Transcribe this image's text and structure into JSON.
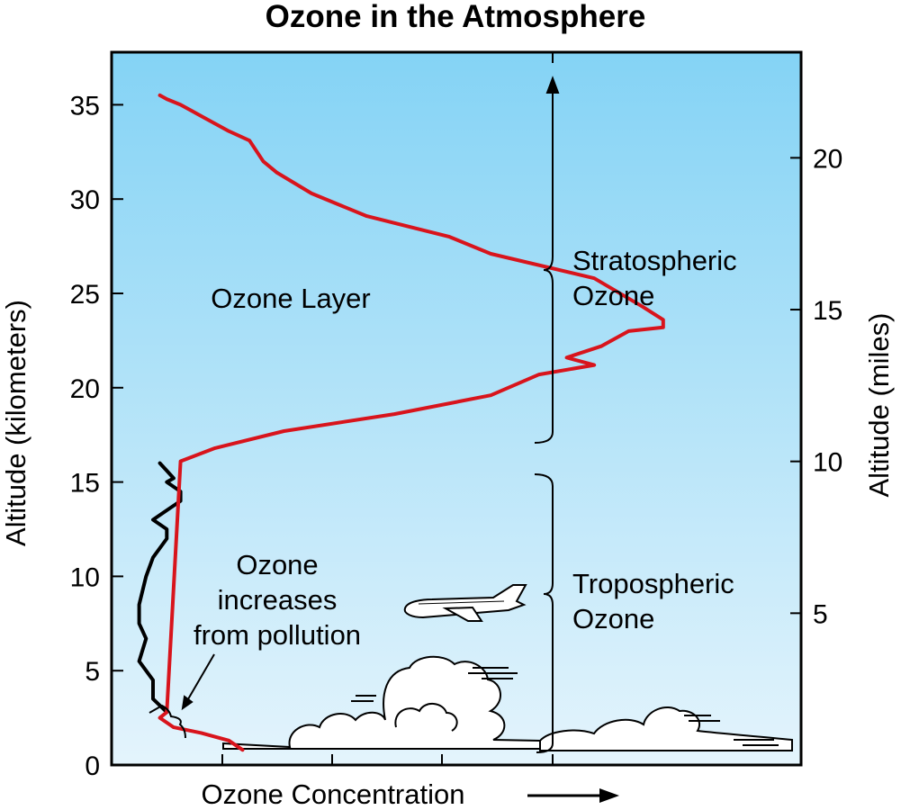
{
  "chart_data": {
    "type": "line",
    "title": "Ozone in the Atmosphere",
    "xlabel": "Ozone Concentration",
    "ylabel": "Altitude (kilometers)",
    "y2label": "Altitude (miles)",
    "ylim": [
      0,
      37.5
    ],
    "y_ticks": [
      0,
      5,
      10,
      15,
      20,
      25,
      30,
      35
    ],
    "y_tick_labels": [
      "0",
      "5",
      "10",
      "15",
      "20",
      "25",
      "30",
      "35"
    ],
    "y2_ticks": [
      5,
      10,
      15,
      20
    ],
    "y2_tick_labels": [
      "5",
      "10",
      "15",
      "20"
    ],
    "x_arrow": true,
    "series": [
      {
        "color": "#000000",
        "x": [
          0.08,
          0.06,
          0.06,
          0.04,
          0.05,
          0.04,
          0.04,
          0.05,
          0.06,
          0.08,
          0.08,
          0.06,
          0.08,
          0.1,
          0.1,
          0.08,
          0.09,
          0.08,
          0.07
        ],
        "y": [
          2.8,
          3.5,
          4.5,
          5.5,
          6.7,
          7.5,
          8.5,
          10.0,
          11.0,
          12.0,
          12.5,
          13.0,
          13.5,
          14.0,
          14.5,
          15.0,
          15.2,
          15.6,
          16.0
        ]
      },
      {
        "color": "#d8141c",
        "x": [
          0.19,
          0.17,
          0.13,
          0.09,
          0.07,
          0.08,
          0.1,
          0.15,
          0.25,
          0.41,
          0.55,
          0.62,
          0.7,
          0.66,
          0.71,
          0.75,
          0.8,
          0.8,
          0.77,
          0.7,
          0.55,
          0.49,
          0.37,
          0.29,
          0.24,
          0.22,
          0.2,
          0.17,
          0.15,
          0.12,
          0.1,
          0.08,
          0.07
        ],
        "y": [
          0.8,
          1.3,
          1.7,
          2.0,
          2.5,
          2.8,
          16.1,
          16.8,
          17.7,
          18.6,
          19.6,
          20.7,
          21.2,
          21.6,
          22.2,
          23.0,
          23.2,
          23.6,
          24.3,
          25.8,
          27.1,
          28.0,
          29.1,
          30.3,
          31.4,
          32.0,
          33.1,
          33.6,
          34.0,
          34.6,
          35.0,
          35.3,
          35.5
        ]
      }
    ],
    "annotations": {
      "ozone_layer": "Ozone Layer",
      "pollution_lines": [
        "Ozone",
        "increases",
        "from pollution"
      ],
      "strat_lines": [
        "Stratospheric",
        "Ozone"
      ],
      "trop_lines": [
        "Tropospheric",
        "Ozone"
      ]
    },
    "background_gradient": [
      "#84d3f5",
      "#e4f4fc"
    ],
    "colors": {
      "stratospheric": "#d8141c",
      "tropospheric": "#000000"
    }
  }
}
